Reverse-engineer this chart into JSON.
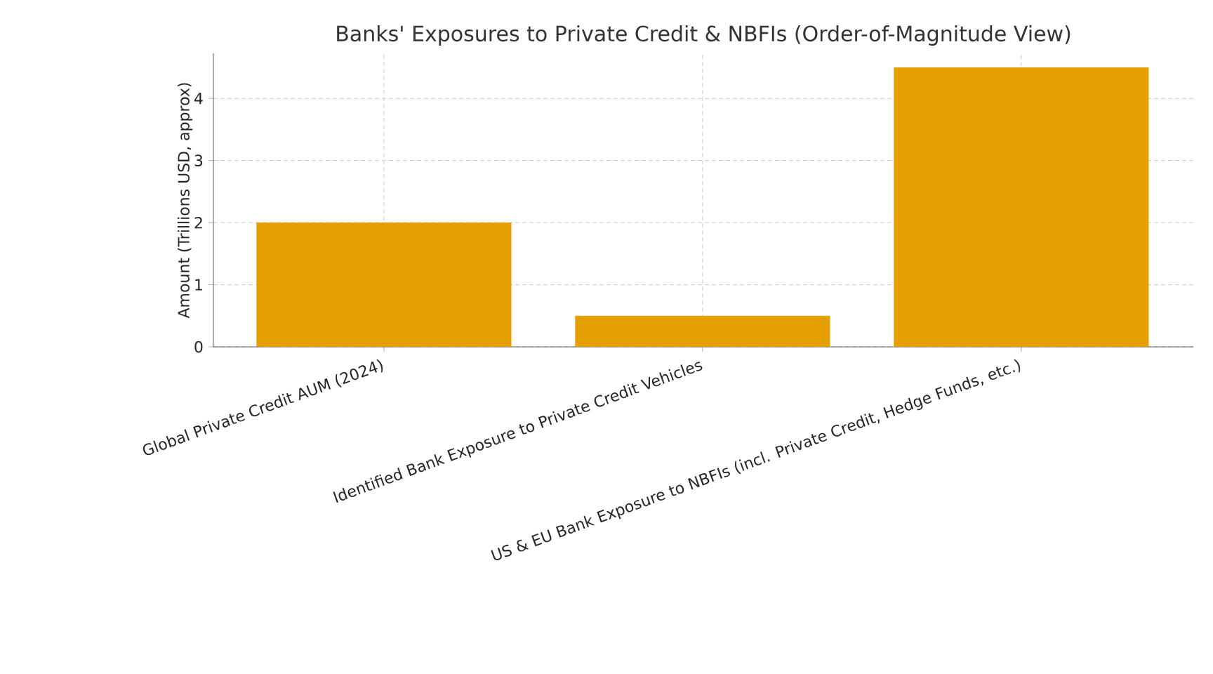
{
  "chart_data": {
    "type": "bar",
    "title": "Banks' Exposures to Private Credit & NBFIs (Order-of-Magnitude View)",
    "ylabel": "Amount (Trillions USD, approx)",
    "categories": [
      "Global Private Credit AUM (2024)",
      "Identified Bank Exposure to Private Credit Vehicles",
      "US & EU Bank Exposure to NBFIs (incl. Private Credit, Hedge Funds, etc.)"
    ],
    "values": [
      2,
      0.5,
      4.5
    ],
    "color": "#e69f00",
    "ylim": [
      0,
      4.725
    ],
    "yticks": [
      0,
      1,
      2,
      3,
      4
    ],
    "grid": true
  }
}
